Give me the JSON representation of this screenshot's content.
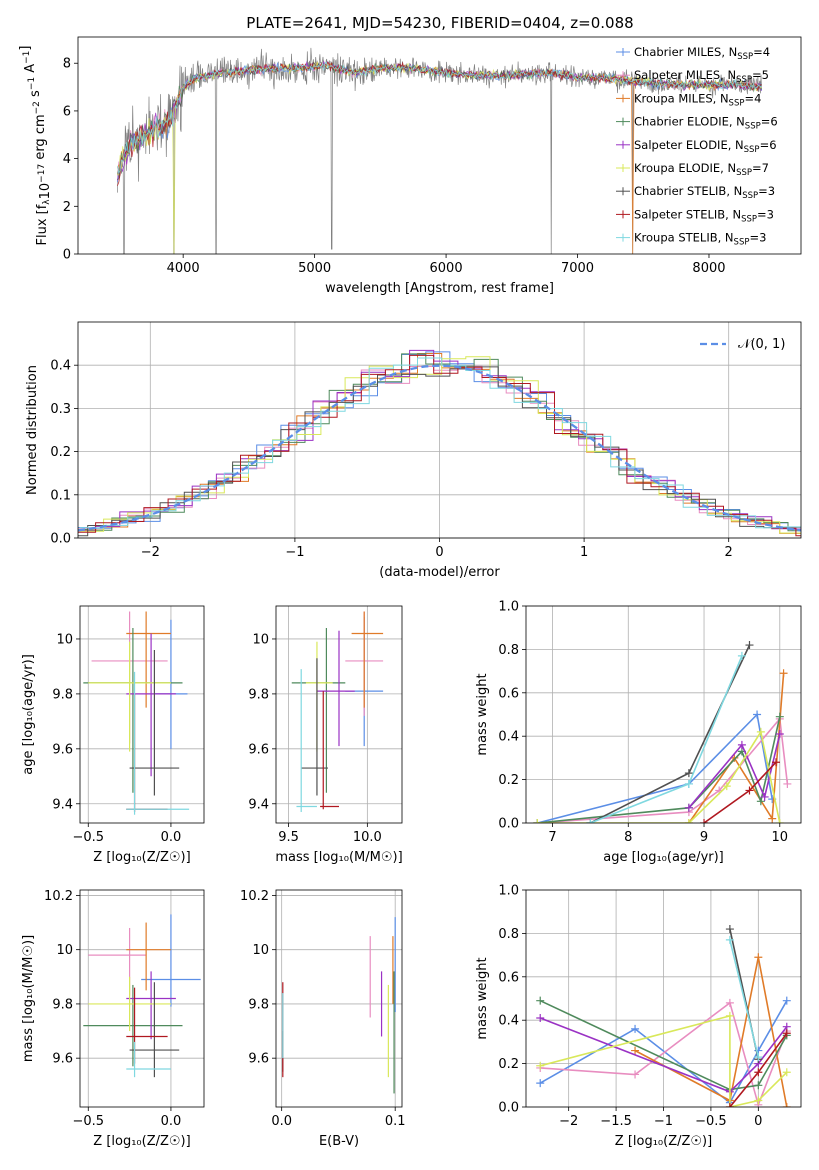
{
  "figure": {
    "title": "PLATE=2641, MJD=54230, FIBERID=0404, z=0.088"
  },
  "models": [
    {
      "label": "Chabrier MILES, N",
      "sub": "SSP",
      "suffix": "=4",
      "color": "#5b8ee6"
    },
    {
      "label": "Salpeter MILES, N",
      "sub": "SSP",
      "suffix": "=5",
      "color": "#e88dc0"
    },
    {
      "label": "Kroupa MILES, N",
      "sub": "SSP",
      "suffix": "=4",
      "color": "#e07b28"
    },
    {
      "label": "Chabrier ELODIE, N",
      "sub": "SSP",
      "suffix": "=6",
      "color": "#4f8a5c"
    },
    {
      "label": "Salpeter ELODIE, N",
      "sub": "SSP",
      "suffix": "=6",
      "color": "#9a32c4"
    },
    {
      "label": "Kroupa ELODIE, N",
      "sub": "SSP",
      "suffix": "=7",
      "color": "#d9e85a"
    },
    {
      "label": "Chabrier STELIB, N",
      "sub": "SSP",
      "suffix": "=3",
      "color": "#505050"
    },
    {
      "label": "Salpeter STELIB, N",
      "sub": "SSP",
      "suffix": "=3",
      "color": "#b01820"
    },
    {
      "label": "Kroupa STELIB, N",
      "sub": "SSP",
      "suffix": "=3",
      "color": "#7fd8e0"
    }
  ],
  "chart_data": [
    {
      "id": "spectrum",
      "type": "line",
      "xlabel": "wavelength [Angstrom, rest frame]",
      "ylabel_prefix": "Flux [f",
      "ylabel_sub": "λ",
      "ylabel_body": "10",
      "ylabel_sup1": "−17",
      "ylabel_mid": " erg cm",
      "ylabel_sup2": "−2",
      "ylabel_mid2": " s",
      "ylabel_sup3": "−1",
      "ylabel_mid3": " A",
      "ylabel_sup4": "−1",
      "ylabel_end": "]",
      "xlim": [
        3200,
        8700
      ],
      "ylim": [
        0,
        9.1
      ],
      "xticks": [
        4000,
        5000,
        6000,
        7000,
        8000
      ],
      "yticks": [
        0,
        2,
        4,
        6,
        8
      ],
      "data_color": "#808080",
      "continuum": [
        [
          3500,
          3.5
        ],
        [
          3600,
          4.6
        ],
        [
          3700,
          5.0
        ],
        [
          3800,
          5.2
        ],
        [
          3900,
          5.6
        ],
        [
          4000,
          7.0
        ],
        [
          4100,
          7.4
        ],
        [
          4300,
          7.6
        ],
        [
          4500,
          7.7
        ],
        [
          4700,
          7.8
        ],
        [
          4900,
          7.8
        ],
        [
          5100,
          7.9
        ],
        [
          5300,
          7.6
        ],
        [
          5500,
          7.8
        ],
        [
          5700,
          7.8
        ],
        [
          6000,
          7.6
        ],
        [
          6200,
          7.5
        ],
        [
          6500,
          7.5
        ],
        [
          6800,
          7.6
        ],
        [
          7000,
          7.4
        ],
        [
          7200,
          7.4
        ],
        [
          7500,
          7.2
        ],
        [
          7800,
          7.1
        ],
        [
          8000,
          7.1
        ],
        [
          8200,
          7.1
        ],
        [
          8400,
          7.0
        ]
      ],
      "dips": [
        [
          3930,
          0.0
        ],
        [
          4250,
          0.0
        ],
        [
          5130,
          0.2
        ],
        [
          6800,
          0.0
        ],
        [
          7420,
          0.0
        ],
        [
          3550,
          0.0
        ]
      ]
    },
    {
      "id": "residual-hist",
      "type": "line",
      "xlabel": "(data-model)/error",
      "ylabel": "Normed distribution",
      "legend": "𝒩(0, 1)",
      "xlim": [
        -2.5,
        2.5
      ],
      "ylim": [
        0,
        0.5
      ],
      "xticks": [
        -2,
        -1,
        0,
        1,
        2
      ],
      "yticks": [
        0.0,
        0.1,
        0.2,
        0.3,
        0.4
      ]
    },
    {
      "id": "age-vs-Z",
      "type": "scatter",
      "xlabel": "Z [log₁₀(Z/Z☉)]",
      "ylabel": "age  [log₁₀(age/yr)]",
      "xlim": [
        -0.55,
        0.2
      ],
      "ylim": [
        9.33,
        10.12
      ],
      "xticks": [
        -0.5,
        0.0
      ],
      "yticks": [
        9.4,
        9.6,
        9.8,
        10.0
      ],
      "points": [
        {
          "x": 0.0,
          "y": 9.8,
          "xerr": [
            0.1,
            0.1
          ],
          "yerr": [
            0.2,
            0.27
          ],
          "model": 0
        },
        {
          "x": -0.25,
          "y": 9.92,
          "xerr": [
            0.23,
            0.23
          ],
          "yerr": [
            0.3,
            0.18
          ],
          "model": 1
        },
        {
          "x": -0.15,
          "y": 10.02,
          "xerr": [
            0.12,
            0.15
          ],
          "yerr": [
            0.27,
            0.08
          ],
          "model": 2
        },
        {
          "x": -0.23,
          "y": 9.84,
          "xerr": [
            0.3,
            0.3
          ],
          "yerr": [
            0.4,
            0.2
          ],
          "model": 3
        },
        {
          "x": -0.12,
          "y": 9.8,
          "xerr": [
            0.15,
            0.15
          ],
          "yerr": [
            0.3,
            0.22
          ],
          "model": 4
        },
        {
          "x": -0.25,
          "y": 9.84,
          "xerr": [
            0.25,
            0.25
          ],
          "yerr": [
            0.25,
            0.15
          ],
          "model": 5
        },
        {
          "x": -0.1,
          "y": 9.53,
          "xerr": [
            0.15,
            0.15
          ],
          "yerr": [
            0.1,
            0.43
          ],
          "model": 6
        },
        {
          "x": -0.22,
          "y": 9.38,
          "xerr": [
            0.05,
            0.2
          ],
          "yerr": [
            0.01,
            0.42
          ],
          "model": 7
        },
        {
          "x": -0.22,
          "y": 9.38,
          "xerr": [
            0.05,
            0.33
          ],
          "yerr": [
            0.02,
            0.5
          ],
          "model": 8
        }
      ]
    },
    {
      "id": "age-vs-mass",
      "type": "scatter",
      "xlabel": "mass [log₁₀(M/M☉)]",
      "xlim": [
        9.42,
        10.22
      ],
      "ylim": [
        9.33,
        10.12
      ],
      "xticks": [
        9.5,
        10.0
      ],
      "yticks": [
        9.4,
        9.6,
        9.8,
        10.0
      ],
      "points": [
        {
          "x": 9.98,
          "y": 9.81,
          "xerr": [
            0.12,
            0.12
          ],
          "yerr": [
            0.2,
            0.27
          ],
          "model": 0
        },
        {
          "x": 9.98,
          "y": 9.92,
          "xerr": [
            0.12,
            0.12
          ],
          "yerr": [
            0.2,
            0.18
          ],
          "model": 1
        },
        {
          "x": 9.98,
          "y": 10.02,
          "xerr": [
            0.08,
            0.12
          ],
          "yerr": [
            0.27,
            0.08
          ],
          "model": 2
        },
        {
          "x": 9.74,
          "y": 9.84,
          "xerr": [
            0.22,
            0.12
          ],
          "yerr": [
            0.4,
            0.2
          ],
          "model": 3
        },
        {
          "x": 9.82,
          "y": 9.81,
          "xerr": [
            0.14,
            0.1
          ],
          "yerr": [
            0.2,
            0.22
          ],
          "model": 4
        },
        {
          "x": 9.68,
          "y": 9.84,
          "xerr": [
            0.07,
            0.1
          ],
          "yerr": [
            0.25,
            0.15
          ],
          "model": 5
        },
        {
          "x": 9.68,
          "y": 9.53,
          "xerr": [
            0.1,
            0.07
          ],
          "yerr": [
            0.1,
            0.4
          ],
          "model": 6
        },
        {
          "x": 9.72,
          "y": 9.39,
          "xerr": [
            0.02,
            0.1
          ],
          "yerr": [
            0.01,
            0.42
          ],
          "model": 7
        },
        {
          "x": 9.58,
          "y": 9.39,
          "xerr": [
            0.03,
            0.1
          ],
          "yerr": [
            0.02,
            0.5
          ],
          "model": 8
        }
      ]
    },
    {
      "id": "weight-vs-age",
      "type": "line",
      "xlabel": "age  [log₁₀(age/yr)]",
      "ylabel": "mass weight",
      "xlim": [
        6.65,
        10.28
      ],
      "ylim": [
        0,
        1.0
      ],
      "xticks": [
        7,
        8,
        9,
        10
      ],
      "yticks": [
        0.0,
        0.2,
        0.4,
        0.6,
        0.8,
        1.0
      ],
      "series": [
        {
          "model": 0,
          "x": [
            6.8,
            8.8,
            9.7,
            9.9
          ],
          "y": [
            0.0,
            0.18,
            0.5,
            0.11
          ]
        },
        {
          "model": 1,
          "x": [
            6.8,
            8.8,
            9.2,
            10.0,
            10.1
          ],
          "y": [
            0.0,
            0.05,
            0.15,
            0.48,
            0.18
          ]
        },
        {
          "model": 2,
          "x": [
            8.8,
            9.4,
            9.9,
            10.05
          ],
          "y": [
            0.0,
            0.3,
            0.02,
            0.69
          ]
        },
        {
          "model": 3,
          "x": [
            6.8,
            8.8,
            9.5,
            9.75,
            10.0
          ],
          "y": [
            0.0,
            0.07,
            0.33,
            0.1,
            0.49
          ]
        },
        {
          "model": 4,
          "x": [
            8.8,
            9.5,
            9.8,
            10.0
          ],
          "y": [
            0.07,
            0.36,
            0.12,
            0.41
          ]
        },
        {
          "model": 5,
          "x": [
            6.8,
            8.8,
            9.3,
            9.75,
            10.0
          ],
          "y": [
            0.0,
            0.0,
            0.17,
            0.42,
            0.0
          ]
        },
        {
          "model": 6,
          "x": [
            7.5,
            8.8,
            9.6
          ],
          "y": [
            0.0,
            0.23,
            0.82
          ]
        },
        {
          "model": 7,
          "x": [
            9.0,
            9.6,
            9.95
          ],
          "y": [
            0.0,
            0.15,
            0.28
          ]
        },
        {
          "model": 8,
          "x": [
            7.5,
            8.8,
            9.5
          ],
          "y": [
            0.0,
            0.18,
            0.77
          ]
        }
      ]
    },
    {
      "id": "mass-vs-Z",
      "type": "scatter",
      "xlabel": "Z [log₁₀(Z/Z☉)]",
      "ylabel": "mass [log₁₀(M/M☉)]",
      "xlim": [
        -0.55,
        0.2
      ],
      "ylim": [
        9.42,
        10.22
      ],
      "xticks": [
        -0.5,
        0.0
      ],
      "yticks": [
        9.6,
        9.8,
        10.0,
        10.2
      ],
      "points": [
        {
          "x": 0.0,
          "y": 9.89,
          "xerr": [
            0.18,
            0.18
          ],
          "yerr": [
            0.1,
            0.24
          ],
          "model": 0
        },
        {
          "x": -0.25,
          "y": 9.98,
          "xerr": [
            0.25,
            0.1
          ],
          "yerr": [
            0.15,
            0.1
          ],
          "model": 1
        },
        {
          "x": -0.15,
          "y": 10.0,
          "xerr": [
            0.12,
            0.15
          ],
          "yerr": [
            0.15,
            0.1
          ],
          "model": 2
        },
        {
          "x": -0.23,
          "y": 9.72,
          "xerr": [
            0.3,
            0.3
          ],
          "yerr": [
            0.15,
            0.15
          ],
          "model": 3
        },
        {
          "x": -0.12,
          "y": 9.82,
          "xerr": [
            0.15,
            0.15
          ],
          "yerr": [
            0.15,
            0.1
          ],
          "model": 4
        },
        {
          "x": -0.25,
          "y": 9.8,
          "xerr": [
            0.25,
            0.25
          ],
          "yerr": [
            0.1,
            0.1
          ],
          "model": 5
        },
        {
          "x": -0.1,
          "y": 9.63,
          "xerr": [
            0.15,
            0.15
          ],
          "yerr": [
            0.1,
            0.25
          ],
          "model": 6
        },
        {
          "x": -0.22,
          "y": 9.68,
          "xerr": [
            0.05,
            0.2
          ],
          "yerr": [
            0.1,
            0.18
          ],
          "model": 7
        },
        {
          "x": -0.22,
          "y": 9.56,
          "xerr": [
            0.05,
            0.22
          ],
          "yerr": [
            0.03,
            0.1
          ],
          "model": 8
        }
      ]
    },
    {
      "id": "mass-vs-ebv",
      "type": "scatter",
      "xlabel": "E(B-V)",
      "xlim": [
        -0.005,
        0.106
      ],
      "ylim": [
        9.42,
        10.22
      ],
      "xticks": [
        0.0,
        0.1
      ],
      "yticks": [
        9.6,
        9.8,
        10.0,
        10.2
      ],
      "points": [
        {
          "x": 0.1,
          "y": 9.92,
          "model": 0,
          "yerr": [
            0.15,
            0.2
          ]
        },
        {
          "x": 0.078,
          "y": 9.9,
          "model": 1,
          "yerr": [
            0.15,
            0.15
          ]
        },
        {
          "x": 0.098,
          "y": 9.95,
          "model": 2,
          "yerr": [
            0.15,
            0.1
          ]
        },
        {
          "x": 0.099,
          "y": 9.77,
          "model": 3,
          "yerr": [
            0.3,
            0.15
          ]
        },
        {
          "x": 0.088,
          "y": 9.8,
          "model": 4,
          "yerr": [
            0.12,
            0.12
          ]
        },
        {
          "x": 0.094,
          "y": 9.77,
          "model": 5,
          "yerr": [
            0.24,
            0.1
          ]
        },
        {
          "x": 0.001,
          "y": 9.6,
          "model": 6,
          "yerr": [
            0.05,
            0.1
          ]
        },
        {
          "x": 0.001,
          "y": 9.7,
          "model": 7,
          "yerr": [
            0.17,
            0.18
          ]
        },
        {
          "x": 0.001,
          "y": 9.7,
          "model": 8,
          "yerr": [
            0.1,
            0.14
          ]
        }
      ]
    },
    {
      "id": "weight-vs-Z",
      "type": "line",
      "xlabel": "Z [log₁₀(Z/Z☉)]",
      "ylabel": "mass weight",
      "xlim": [
        -2.45,
        0.45
      ],
      "ylim": [
        0,
        1.0
      ],
      "xticks": [
        -2.0,
        -1.5,
        -1.0,
        -0.5,
        0.0
      ],
      "yticks": [
        0.0,
        0.2,
        0.4,
        0.6,
        0.8,
        1.0
      ],
      "series": [
        {
          "model": 0,
          "x": [
            -2.3,
            -1.3,
            -0.3,
            0.0,
            0.3
          ],
          "y": [
            0.11,
            0.36,
            0.02,
            0.26,
            0.49
          ]
        },
        {
          "model": 1,
          "x": [
            -2.3,
            -1.3,
            -0.3,
            0.0,
            0.3
          ],
          "y": [
            0.18,
            0.15,
            0.48,
            0.01,
            0.35
          ]
        },
        {
          "model": 2,
          "x": [
            -1.3,
            -0.3,
            0.0,
            0.3
          ],
          "y": [
            0.26,
            0.03,
            0.69,
            0.0
          ]
        },
        {
          "model": 3,
          "x": [
            -2.3,
            -0.3,
            0.0,
            0.3
          ],
          "y": [
            0.49,
            0.08,
            0.1,
            0.33
          ]
        },
        {
          "model": 4,
          "x": [
            -2.3,
            -0.3,
            0.0,
            0.3
          ],
          "y": [
            0.41,
            0.07,
            0.2,
            0.37
          ]
        },
        {
          "model": 5,
          "x": [
            -2.3,
            -0.3,
            -0.3,
            0.0,
            0.3
          ],
          "y": [
            0.19,
            0.42,
            0.0,
            0.03,
            0.16
          ]
        },
        {
          "model": 6,
          "x": [
            -0.3,
            0.0
          ],
          "y": [
            0.82,
            0.22
          ]
        },
        {
          "model": 7,
          "x": [
            -0.3,
            0.0,
            0.3
          ],
          "y": [
            0.0,
            0.16,
            0.34
          ]
        },
        {
          "model": 8,
          "x": [
            -0.3,
            0.0
          ],
          "y": [
            0.77,
            0.23
          ]
        }
      ]
    }
  ]
}
